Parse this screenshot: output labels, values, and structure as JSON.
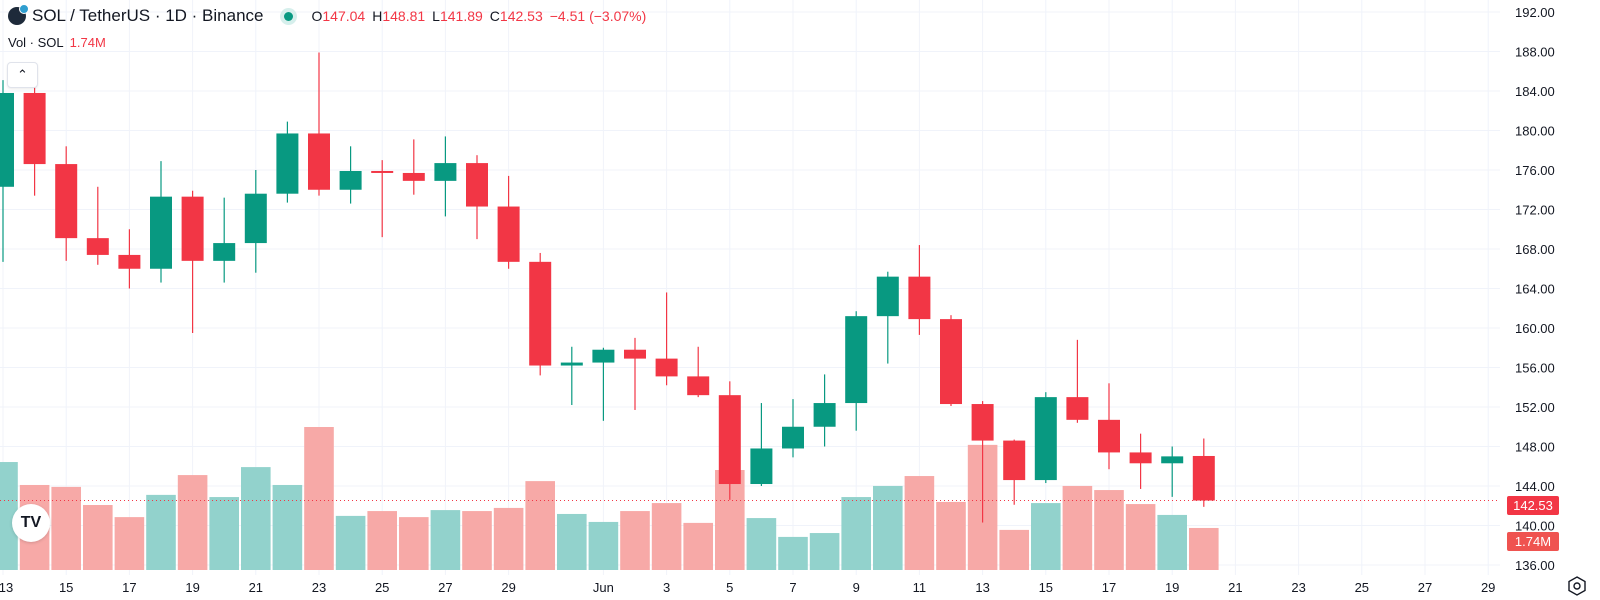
{
  "header": {
    "symbol_title": "SOL / TetherUS · 1D · Binance",
    "ohlc": {
      "o_label": "O",
      "o": "147.04",
      "h_label": "H",
      "h": "148.81",
      "l_label": "L",
      "l": "141.89",
      "c_label": "C",
      "c": "142.53",
      "change": "−4.51 (−3.07%)"
    },
    "volume_label": "Vol · SOL",
    "volume_value": "1.74M"
  },
  "price_tag": "142.53",
  "volume_tag": "1.74M",
  "icons": {
    "collapse": "chevron-up-icon",
    "logo": "tradingview-logo-icon",
    "settings": "settings-gear-icon",
    "symbol": "solana-icon"
  },
  "colors": {
    "up": "#089981",
    "down": "#f23645",
    "vol_up": "#92d2cc",
    "vol_down": "#f7a9a7",
    "grid": "#f0f3fa"
  },
  "chart_data": {
    "type": "candlestick",
    "y_ticks": [
      "192.00",
      "188.00",
      "184.00",
      "180.00",
      "176.00",
      "172.00",
      "168.00",
      "164.00",
      "160.00",
      "156.00",
      "152.00",
      "148.00",
      "144.00",
      "140.00",
      "136.00"
    ],
    "ylim": [
      136,
      192
    ],
    "x_tick_labels": [
      "13",
      "15",
      "17",
      "19",
      "21",
      "23",
      "25",
      "27",
      "29",
      "Jun",
      "3",
      "5",
      "7",
      "9",
      "11",
      "13",
      "15",
      "17",
      "19",
      "21",
      "23",
      "25",
      "27",
      "29"
    ],
    "grid": true,
    "last_price": 142.53,
    "candles": [
      {
        "date": "May 13",
        "o": 174.3,
        "h": 185.1,
        "l": 166.7,
        "c": 183.8,
        "v": 4.47
      },
      {
        "date": "May 14",
        "o": 183.8,
        "h": 184.4,
        "l": 173.4,
        "c": 176.6,
        "v": 3.52
      },
      {
        "date": "May 15",
        "o": 176.6,
        "h": 178.4,
        "l": 166.8,
        "c": 169.1,
        "v": 3.44
      },
      {
        "date": "May 16",
        "o": 169.1,
        "h": 174.3,
        "l": 166.4,
        "c": 167.4,
        "v": 2.69
      },
      {
        "date": "May 17",
        "o": 167.4,
        "h": 170.0,
        "l": 164.0,
        "c": 166.0,
        "v": 2.19
      },
      {
        "date": "May 18",
        "o": 166.0,
        "h": 176.9,
        "l": 164.6,
        "c": 173.3,
        "v": 3.11
      },
      {
        "date": "May 19",
        "o": 173.3,
        "h": 173.9,
        "l": 159.5,
        "c": 166.8,
        "v": 3.93
      },
      {
        "date": "May 20",
        "o": 166.8,
        "h": 173.2,
        "l": 164.6,
        "c": 168.6,
        "v": 3.02
      },
      {
        "date": "May 21",
        "o": 168.6,
        "h": 176.0,
        "l": 165.6,
        "c": 173.6,
        "v": 4.26
      },
      {
        "date": "May 22",
        "o": 173.6,
        "h": 180.9,
        "l": 172.7,
        "c": 179.7,
        "v": 3.52
      },
      {
        "date": "May 23",
        "o": 179.7,
        "h": 187.9,
        "l": 173.4,
        "c": 174.0,
        "v": 5.92
      },
      {
        "date": "May 24",
        "o": 174.0,
        "h": 178.4,
        "l": 172.6,
        "c": 175.9,
        "v": 2.24
      },
      {
        "date": "May 25",
        "o": 175.9,
        "h": 177.0,
        "l": 169.2,
        "c": 175.7,
        "v": 2.44
      },
      {
        "date": "May 26",
        "o": 175.7,
        "h": 179.1,
        "l": 173.5,
        "c": 174.9,
        "v": 2.19
      },
      {
        "date": "May 27",
        "o": 174.9,
        "h": 179.4,
        "l": 171.3,
        "c": 176.7,
        "v": 2.48
      },
      {
        "date": "May 28",
        "o": 176.7,
        "h": 177.5,
        "l": 169.0,
        "c": 172.3,
        "v": 2.44
      },
      {
        "date": "May 29",
        "o": 172.3,
        "h": 175.4,
        "l": 166.0,
        "c": 166.7,
        "v": 2.57
      },
      {
        "date": "May 30",
        "o": 166.7,
        "h": 167.6,
        "l": 155.2,
        "c": 156.2,
        "v": 3.68
      },
      {
        "date": "May 31",
        "o": 156.2,
        "h": 158.1,
        "l": 152.2,
        "c": 156.5,
        "v": 2.32
      },
      {
        "date": "Jun 1",
        "o": 156.5,
        "h": 158.0,
        "l": 150.6,
        "c": 157.8,
        "v": 1.99
      },
      {
        "date": "Jun 2",
        "o": 157.8,
        "h": 159.0,
        "l": 151.7,
        "c": 156.9,
        "v": 2.44
      },
      {
        "date": "Jun 3",
        "o": 156.9,
        "h": 163.6,
        "l": 154.2,
        "c": 155.1,
        "v": 2.77
      },
      {
        "date": "Jun 4",
        "o": 155.1,
        "h": 158.1,
        "l": 153.0,
        "c": 153.2,
        "v": 1.95
      },
      {
        "date": "Jun 5",
        "o": 153.2,
        "h": 154.6,
        "l": 142.6,
        "c": 144.2,
        "v": 4.14
      },
      {
        "date": "Jun 6",
        "o": 144.2,
        "h": 152.4,
        "l": 144.0,
        "c": 147.8,
        "v": 2.15
      },
      {
        "date": "Jun 7",
        "o": 147.8,
        "h": 152.8,
        "l": 146.9,
        "c": 150.0,
        "v": 1.37
      },
      {
        "date": "Jun 8",
        "o": 150.0,
        "h": 155.3,
        "l": 148.0,
        "c": 152.4,
        "v": 1.53
      },
      {
        "date": "Jun 9",
        "o": 152.4,
        "h": 161.7,
        "l": 149.6,
        "c": 161.2,
        "v": 3.02
      },
      {
        "date": "Jun 10",
        "o": 161.2,
        "h": 165.7,
        "l": 156.4,
        "c": 165.2,
        "v": 3.48
      },
      {
        "date": "Jun 11",
        "o": 165.2,
        "h": 168.4,
        "l": 159.3,
        "c": 160.9,
        "v": 3.89
      },
      {
        "date": "Jun 12",
        "o": 160.9,
        "h": 161.3,
        "l": 152.1,
        "c": 152.3,
        "v": 2.82
      },
      {
        "date": "Jun 13",
        "o": 152.3,
        "h": 152.6,
        "l": 140.3,
        "c": 148.6,
        "v": 5.18
      },
      {
        "date": "Jun 14",
        "o": 148.6,
        "h": 148.7,
        "l": 142.1,
        "c": 144.6,
        "v": 1.66
      },
      {
        "date": "Jun 15",
        "o": 144.6,
        "h": 153.5,
        "l": 144.3,
        "c": 153.0,
        "v": 2.77
      },
      {
        "date": "Jun 16",
        "o": 153.0,
        "h": 158.8,
        "l": 150.4,
        "c": 150.7,
        "v": 3.48
      },
      {
        "date": "Jun 17",
        "o": 150.7,
        "h": 154.4,
        "l": 145.7,
        "c": 147.4,
        "v": 3.31
      },
      {
        "date": "Jun 18",
        "o": 147.4,
        "h": 149.3,
        "l": 143.7,
        "c": 146.3,
        "v": 2.73
      },
      {
        "date": "Jun 19",
        "o": 146.3,
        "h": 148.0,
        "l": 142.9,
        "c": 147.0,
        "v": 2.28
      },
      {
        "date": "Jun 20",
        "o": 147.04,
        "h": 148.81,
        "l": 141.89,
        "c": 142.53,
        "v": 1.74
      }
    ]
  }
}
